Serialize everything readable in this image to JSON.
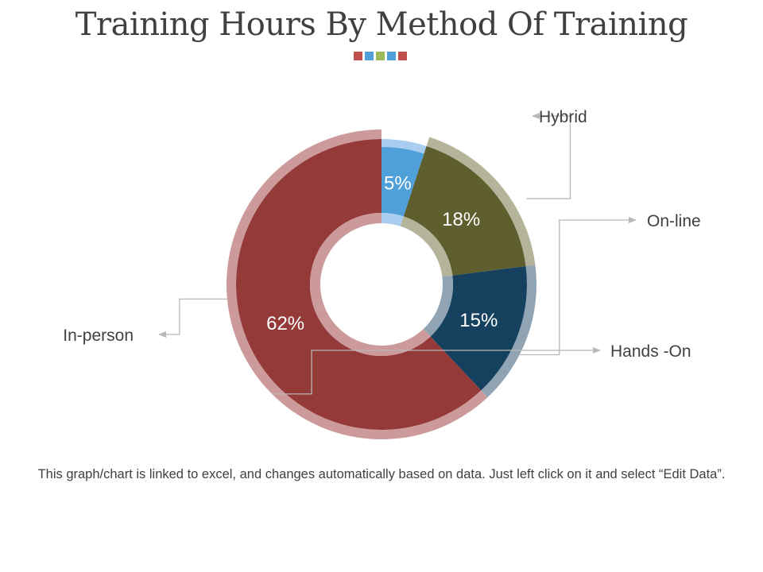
{
  "page": {
    "title": "Training Hours By Method Of Training",
    "accent_colors": [
      "#c0504d",
      "#4f9fd8",
      "#9bbb59",
      "#4f9fd8",
      "#c0504d"
    ],
    "caption": "This graph/chart is linked to excel, and changes automatically based on data. Just left click on it and select “Edit Data”."
  },
  "chart_data": {
    "type": "pie",
    "variant": "doughnut",
    "title": "",
    "categories": [
      "Hybrid",
      "On-line",
      "Hands -On",
      "In-person"
    ],
    "values": [
      5,
      18,
      15,
      62
    ],
    "data_labels": [
      "5%",
      "18%",
      "15%",
      "62%"
    ],
    "colors": [
      "#4f9fd8",
      "#5f5e2f",
      "#15415f",
      "#943a39"
    ],
    "rim_colors": [
      "#a8cdee",
      "#b4b49a",
      "#91a4b4",
      "#cc9a9a"
    ]
  }
}
